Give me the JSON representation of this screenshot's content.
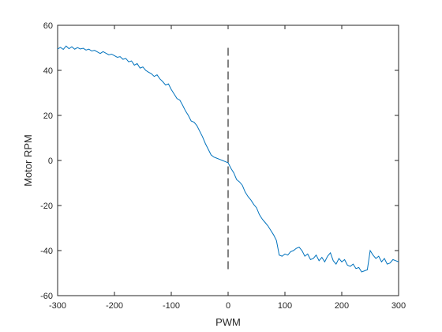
{
  "chart_data": {
    "type": "line",
    "xlabel": "PWM",
    "ylabel": "Motor RPM",
    "xlim": [
      -300,
      300
    ],
    "ylim": [
      -60,
      60
    ],
    "xticks": [
      -300,
      -200,
      -100,
      0,
      100,
      200,
      300
    ],
    "yticks": [
      -60,
      -40,
      -20,
      0,
      20,
      40,
      60
    ],
    "xtick_labels": [
      "-300",
      "-200",
      "-100",
      "0",
      "100",
      "200",
      "300"
    ],
    "ytick_labels": [
      "-60",
      "-40",
      "-20",
      "0",
      "20",
      "40",
      "60"
    ],
    "grid": false,
    "line_color": "#0072BD",
    "marker_color": "#404040",
    "series": [
      {
        "x": [
          -300,
          -295,
          -290,
          -285,
          -280,
          -275,
          -270,
          -265,
          -260,
          -255,
          -250,
          -245,
          -240,
          -235,
          -230,
          -225,
          -220,
          -215,
          -210,
          -205,
          -200,
          -195,
          -190,
          -185,
          -180,
          -175,
          -170,
          -165,
          -160,
          -155,
          -150,
          -145,
          -140,
          -135,
          -130,
          -125,
          -120,
          -115,
          -110,
          -105,
          -100,
          -95,
          -90,
          -85,
          -80,
          -75,
          -70,
          -65,
          -60,
          -55,
          -50,
          -45,
          -40,
          -35,
          -30,
          -25,
          -20,
          -15,
          -10,
          -5,
          0,
          5,
          10,
          15,
          20,
          25,
          30,
          35,
          40,
          45,
          50,
          55,
          60,
          65,
          70,
          75,
          80,
          85,
          90,
          95,
          100,
          105,
          110,
          115,
          120,
          125,
          130,
          135,
          140,
          145,
          150,
          155,
          160,
          165,
          170,
          175,
          180,
          185,
          190,
          195,
          200,
          205,
          210,
          215,
          220,
          225,
          230,
          235,
          240,
          245,
          250,
          255,
          260,
          265,
          270,
          275,
          280,
          285,
          290,
          295,
          300
        ],
        "y": [
          49.5,
          50.2,
          49.3,
          50.8,
          49.6,
          50.5,
          49.4,
          50.1,
          49.5,
          49.8,
          49.0,
          49.4,
          48.6,
          48.9,
          48.2,
          47.5,
          48.3,
          47.6,
          46.9,
          47.2,
          46.5,
          45.8,
          46.1,
          44.9,
          45.3,
          43.8,
          44.2,
          42.3,
          43.0,
          41.0,
          41.5,
          40.0,
          39.2,
          38.5,
          37.3,
          38.0,
          36.2,
          35.0,
          33.5,
          34.0,
          31.5,
          29.5,
          27.5,
          26.8,
          24.5,
          22.0,
          20.0,
          17.5,
          17.0,
          15.5,
          13.0,
          10.5,
          7.5,
          5.0,
          2.5,
          1.5,
          1.0,
          0.5,
          0.0,
          -0.5,
          -1.0,
          -3.5,
          -5.5,
          -8.5,
          -9.5,
          -11.0,
          -14.0,
          -16.0,
          -17.5,
          -19.5,
          -21.0,
          -24.0,
          -26.0,
          -27.5,
          -29.0,
          -31.0,
          -33.0,
          -35.5,
          -42.0,
          -42.5,
          -41.5,
          -42.0,
          -40.5,
          -40.0,
          -39.0,
          -38.5,
          -40.0,
          -42.5,
          -41.5,
          -44.0,
          -43.5,
          -42.0,
          -44.5,
          -43.0,
          -45.0,
          -42.5,
          -41.0,
          -44.5,
          -46.0,
          -43.5,
          -45.0,
          -44.0,
          -46.5,
          -47.0,
          -46.0,
          -48.0,
          -47.5,
          -49.5,
          -49.0,
          -48.5,
          -40.0,
          -42.0,
          -43.5,
          -42.5,
          -45.0,
          -43.5,
          -46.0,
          -45.5,
          -44.0,
          -44.5,
          -45.0
        ]
      }
    ],
    "reference_line": {
      "x": 0,
      "y_from": -50,
      "y_to": 50,
      "style": "dashed"
    }
  }
}
